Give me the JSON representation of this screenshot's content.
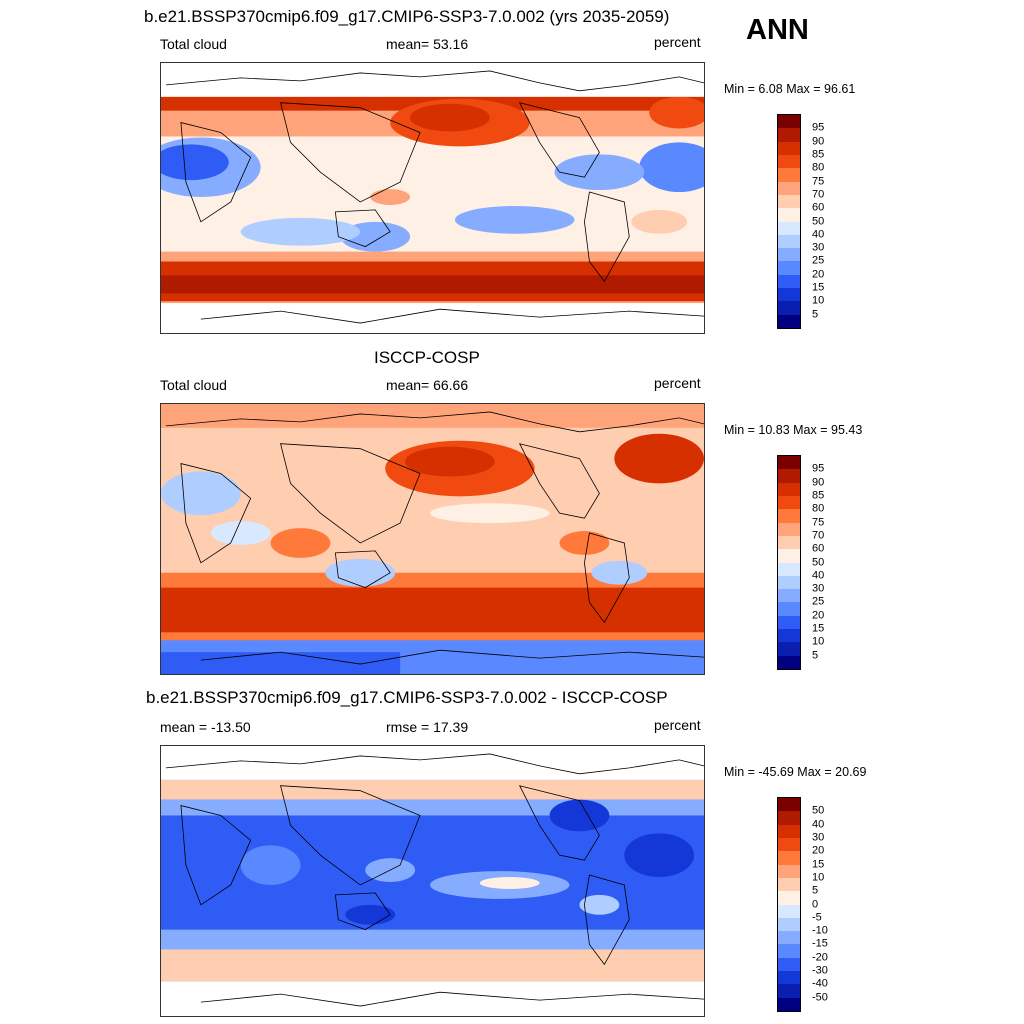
{
  "season": "ANN",
  "panels": [
    {
      "title": "b.e21.BSSP370cmip6.f09_g17.CMIP6-SSP3-7.0.002 (yrs 2035-2059)",
      "left_label": "Total cloud",
      "center_label": "mean=  53.16",
      "right_label": "percent",
      "minmax": "Min =   6.08 Max =  96.61",
      "colorbar_labels": [
        "95",
        "90",
        "85",
        "80",
        "75",
        "70",
        "60",
        "50",
        "40",
        "30",
        "25",
        "20",
        "15",
        "10",
        "5"
      ],
      "colorbar_colors": [
        "#7a0000",
        "#b01a00",
        "#d73000",
        "#f04a10",
        "#ff7a3a",
        "#ffa47a",
        "#ffcdb0",
        "#fff0e6",
        "#d8e8ff",
        "#b0cdff",
        "#86acff",
        "#5a88ff",
        "#2f5cf5",
        "#1438d8",
        "#0a1fb0",
        "#000080"
      ]
    },
    {
      "title": "ISCCP-COSP",
      "left_label": "Total cloud",
      "center_label": "mean=  66.66",
      "right_label": "percent",
      "minmax": "Min =  10.83 Max =  95.43",
      "colorbar_labels": [
        "95",
        "90",
        "85",
        "80",
        "75",
        "70",
        "60",
        "50",
        "40",
        "30",
        "25",
        "20",
        "15",
        "10",
        "5"
      ],
      "colorbar_colors": [
        "#7a0000",
        "#b01a00",
        "#d73000",
        "#f04a10",
        "#ff7a3a",
        "#ffa47a",
        "#ffcdb0",
        "#fff0e6",
        "#d8e8ff",
        "#b0cdff",
        "#86acff",
        "#5a88ff",
        "#2f5cf5",
        "#1438d8",
        "#0a1fb0",
        "#000080"
      ]
    },
    {
      "title": "b.e21.BSSP370cmip6.f09_g17.CMIP6-SSP3-7.0.002 - ISCCP-COSP",
      "left_label": "mean = -13.50",
      "center_label": "rmse =  17.39",
      "right_label": "percent",
      "minmax": "Min = -45.69 Max =  20.69",
      "colorbar_labels": [
        "50",
        "40",
        "30",
        "20",
        "15",
        "10",
        "5",
        "0",
        "-5",
        "-10",
        "-15",
        "-20",
        "-30",
        "-40",
        "-50"
      ],
      "colorbar_colors": [
        "#7a0000",
        "#b01a00",
        "#d73000",
        "#f04a10",
        "#ff7a3a",
        "#ffa47a",
        "#ffcdb0",
        "#fff0e6",
        "#d8e8ff",
        "#b0cdff",
        "#86acff",
        "#5a88ff",
        "#2f5cf5",
        "#1438d8",
        "#0a1fb0",
        "#000080"
      ]
    }
  ]
}
